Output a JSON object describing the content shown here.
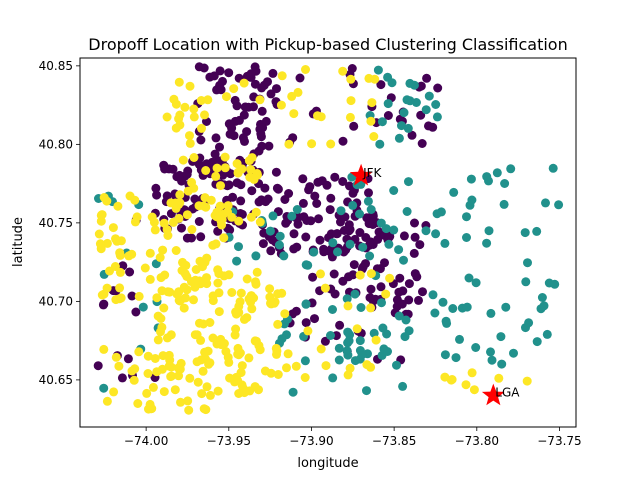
{
  "chart_data": {
    "type": "scatter",
    "title": "Dropoff Location with Pickup-based Clustering Classification",
    "xlabel": "longitude",
    "ylabel": "latitude",
    "xlim": [
      -74.04,
      -73.74
    ],
    "ylim": [
      40.62,
      40.855
    ],
    "grid": false,
    "legend": "none",
    "x_ticks": [
      {
        "value": -74.0,
        "label": "−74.00"
      },
      {
        "value": -73.95,
        "label": "−73.95"
      },
      {
        "value": -73.9,
        "label": "−73.90"
      },
      {
        "value": -73.85,
        "label": "−73.85"
      },
      {
        "value": -73.8,
        "label": "−73.80"
      },
      {
        "value": -73.75,
        "label": "−73.75"
      }
    ],
    "y_ticks": [
      {
        "value": 40.65,
        "label": "40.65"
      },
      {
        "value": 40.7,
        "label": "40.70"
      },
      {
        "value": 40.75,
        "label": "40.75"
      },
      {
        "value": 40.8,
        "label": "40.80"
      },
      {
        "value": 40.85,
        "label": "40.85"
      }
    ],
    "cluster_colors": [
      "#440154",
      "#21918c",
      "#fde725"
    ],
    "clusters": [
      {
        "color": "#440154",
        "regions": [
          {
            "x": [
              -73.995,
              -73.93
            ],
            "y": [
              40.74,
              40.79
            ],
            "density": 95
          },
          {
            "x": [
              -73.97,
              -73.92
            ],
            "y": [
              40.78,
              40.85
            ],
            "density": 70
          },
          {
            "x": [
              -73.93,
              -73.86
            ],
            "y": [
              40.73,
              40.78
            ],
            "density": 80
          },
          {
            "x": [
              -73.9,
              -73.83
            ],
            "y": [
              40.7,
              40.75
            ],
            "density": 55
          },
          {
            "x": [
              -73.92,
              -73.84
            ],
            "y": [
              40.66,
              40.71
            ],
            "density": 25
          },
          {
            "x": [
              -73.94,
              -73.82
            ],
            "y": [
              40.8,
              40.85
            ],
            "density": 30
          },
          {
            "x": [
              -74.03,
              -73.99
            ],
            "y": [
              40.63,
              40.76
            ],
            "density": 15
          }
        ]
      },
      {
        "color": "#21918c",
        "regions": [
          {
            "x": [
              -73.88,
              -73.75
            ],
            "y": [
              40.66,
              40.79
            ],
            "density": 90
          },
          {
            "x": [
              -73.92,
              -73.84
            ],
            "y": [
              40.64,
              40.7
            ],
            "density": 30
          },
          {
            "x": [
              -73.87,
              -73.82
            ],
            "y": [
              40.8,
              40.85
            ],
            "density": 20
          },
          {
            "x": [
              -74.03,
              -73.99
            ],
            "y": [
              40.63,
              40.79
            ],
            "density": 12
          },
          {
            "x": [
              -73.95,
              -73.88
            ],
            "y": [
              40.72,
              40.76
            ],
            "density": 20
          }
        ]
      },
      {
        "color": "#fde725",
        "regions": [
          {
            "x": [
              -74.03,
              -73.95
            ],
            "y": [
              40.7,
              40.77
            ],
            "density": 90
          },
          {
            "x": [
              -74.0,
              -73.92
            ],
            "y": [
              40.64,
              40.72
            ],
            "density": 110
          },
          {
            "x": [
              -73.99,
              -73.93
            ],
            "y": [
              40.75,
              40.84
            ],
            "density": 60
          },
          {
            "x": [
              -73.93,
              -73.85
            ],
            "y": [
              40.65,
              40.72
            ],
            "density": 25
          },
          {
            "x": [
              -73.92,
              -73.86
            ],
            "y": [
              40.8,
              40.85
            ],
            "density": 20
          },
          {
            "x": [
              -74.03,
              -73.94
            ],
            "y": [
              40.63,
              40.67
            ],
            "density": 35
          },
          {
            "x": [
              -73.82,
              -73.76
            ],
            "y": [
              40.64,
              40.66
            ],
            "density": 8
          }
        ]
      }
    ],
    "landmarks": [
      {
        "label": "JFK",
        "x": -73.87,
        "y": 40.78,
        "color": "#ff0000"
      },
      {
        "label": "LGA",
        "x": -73.79,
        "y": 40.64,
        "color": "#ff0000"
      }
    ]
  }
}
